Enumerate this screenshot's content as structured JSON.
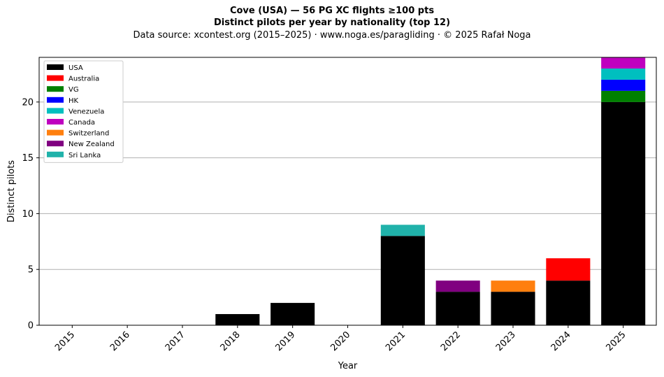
{
  "header": {
    "title": "Cove (USA)  —  56 PG XC flights ≥100 pts",
    "subtitle": "Distinct pilots per year by nationality (top 12)",
    "source": "Data source: xcontest.org (2015–2025)  ·  www.noga.es/paragliding  ·  © 2025 Rafał Noga"
  },
  "chart_data": {
    "type": "bar",
    "stacked": true,
    "title": "Cove (USA)  —  56 PG XC flights ≥100 pts",
    "subtitle": "Distinct pilots per year by nationality (top 12)",
    "xlabel": "Year",
    "ylabel": "Distinct pilots",
    "ylim": [
      0,
      24
    ],
    "yticks": [
      0,
      5,
      10,
      15,
      20
    ],
    "grid": "horizontal",
    "legend_position": "top-left",
    "categories": [
      "2015",
      "2016",
      "2017",
      "2018",
      "2019",
      "2020",
      "2021",
      "2022",
      "2023",
      "2024",
      "2025"
    ],
    "series": [
      {
        "name": "USA",
        "color": "#000000",
        "values": [
          0,
          0,
          0,
          1,
          2,
          0,
          8,
          3,
          3,
          4,
          20
        ]
      },
      {
        "name": "Australia",
        "color": "#ff0000",
        "values": [
          0,
          0,
          0,
          0,
          0,
          0,
          0,
          0,
          0,
          2,
          0
        ]
      },
      {
        "name": "VG",
        "color": "#008000",
        "values": [
          0,
          0,
          0,
          0,
          0,
          0,
          0,
          0,
          0,
          0,
          1
        ]
      },
      {
        "name": "HK",
        "color": "#0000ff",
        "values": [
          0,
          0,
          0,
          0,
          0,
          0,
          0,
          0,
          0,
          0,
          1
        ]
      },
      {
        "name": "Venezuela",
        "color": "#00bfbf",
        "values": [
          0,
          0,
          0,
          0,
          0,
          0,
          0,
          0,
          0,
          0,
          1
        ]
      },
      {
        "name": "Canada",
        "color": "#bf00bf",
        "values": [
          0,
          0,
          0,
          0,
          0,
          0,
          0,
          0,
          0,
          0,
          1
        ]
      },
      {
        "name": "Switzerland",
        "color": "#ff7f0e",
        "values": [
          0,
          0,
          0,
          0,
          0,
          0,
          0,
          0,
          1,
          0,
          0
        ]
      },
      {
        "name": "New Zealand",
        "color": "#800080",
        "values": [
          0,
          0,
          0,
          0,
          0,
          0,
          0,
          1,
          0,
          0,
          0
        ]
      },
      {
        "name": "Sri Lanka",
        "color": "#20b2aa",
        "values": [
          0,
          0,
          0,
          0,
          0,
          0,
          1,
          0,
          0,
          0,
          0
        ]
      }
    ]
  }
}
